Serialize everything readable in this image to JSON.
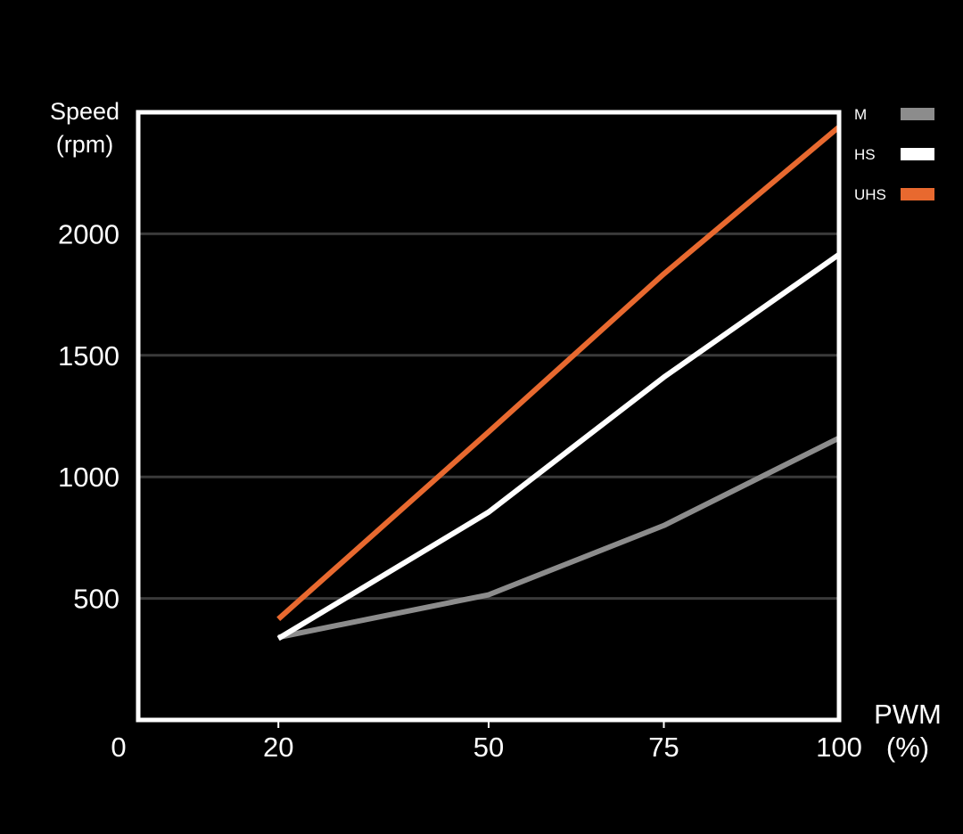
{
  "chart_data": {
    "type": "line",
    "ylabel": [
      "Speed",
      "(rpm)"
    ],
    "xlabel": [
      "PWM",
      "(%)"
    ],
    "xlim": [
      0,
      100
    ],
    "ylim": [
      0,
      2500
    ],
    "x_ticks": [
      "0",
      "20",
      "50",
      "75",
      "100"
    ],
    "y_ticks": [
      "500",
      "1000",
      "1500",
      "2000"
    ],
    "grid": "horizontal",
    "legend_position": "top-right",
    "series": [
      {
        "name": "M",
        "color": "#8c8c8c",
        "x": [
          20,
          50,
          75,
          100
        ],
        "y": [
          340,
          515,
          800,
          1160
        ]
      },
      {
        "name": "HS",
        "color": "#ffffff",
        "x": [
          20,
          50,
          75,
          100
        ],
        "y": [
          335,
          855,
          1410,
          1915
        ]
      },
      {
        "name": "UHS",
        "color": "#e8692f",
        "x": [
          20,
          50,
          75,
          100
        ],
        "y": [
          415,
          1185,
          1835,
          2440
        ]
      }
    ]
  }
}
